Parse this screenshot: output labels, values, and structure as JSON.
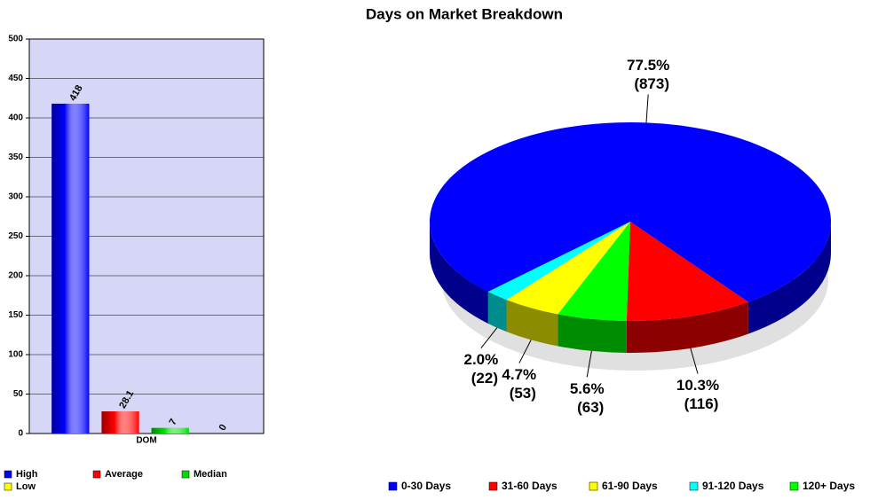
{
  "title": "Days on Market Breakdown",
  "chart_data": [
    {
      "type": "bar",
      "categories": [
        "DOM"
      ],
      "series": [
        {
          "name": "High",
          "color": "#0000ff",
          "values": [
            418
          ]
        },
        {
          "name": "Average",
          "color": "#ff0000",
          "values": [
            28.1
          ]
        },
        {
          "name": "Median",
          "color": "#00dd00",
          "values": [
            7
          ]
        },
        {
          "name": "Low",
          "color": "#ffff00",
          "values": [
            0
          ]
        }
      ],
      "ylim": [
        0,
        500
      ],
      "yticks": [
        0,
        50,
        100,
        150,
        200,
        250,
        300,
        350,
        400,
        450,
        500
      ],
      "grid": true
    },
    {
      "type": "pie",
      "categories": [
        "0-30 Days",
        "31-60 Days",
        "61-90 Days",
        "91-120 Days",
        "120+ Days"
      ],
      "values": [
        873,
        116,
        53,
        22,
        63
      ],
      "value_labels": [
        "(873)",
        "(116)",
        "(53)",
        "(22)",
        "(63)"
      ],
      "percent_labels": [
        "77.5%",
        "10.3%",
        "4.7%",
        "2.0%",
        "5.6%"
      ],
      "colors": [
        "#0000ff",
        "#ff0000",
        "#ffff00",
        "#00ffff",
        "#00ff00"
      ]
    }
  ]
}
